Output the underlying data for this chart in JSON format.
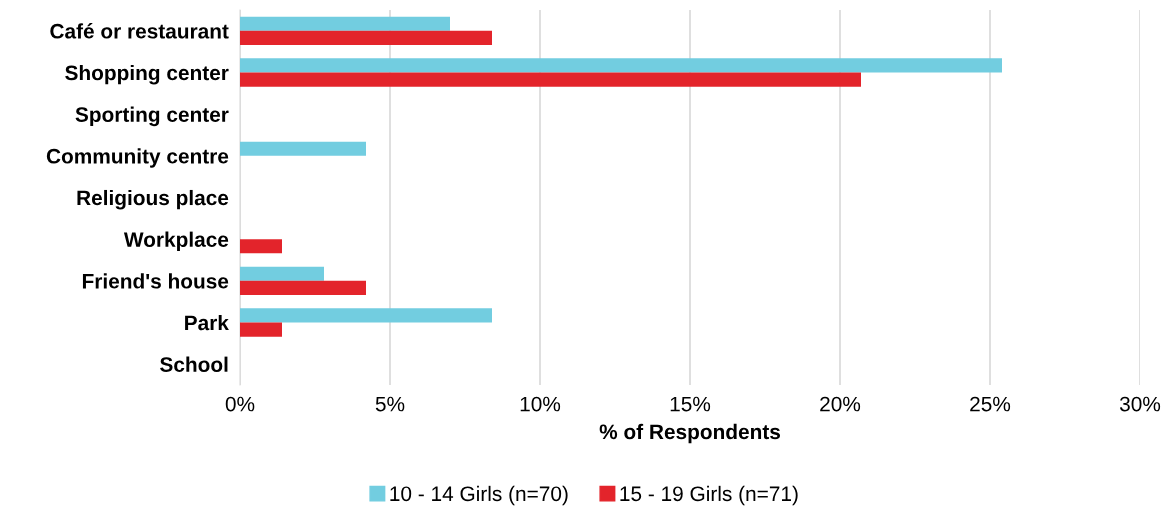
{
  "chart_data": {
    "type": "bar",
    "orientation": "horizontal",
    "xlabel": "% of Respondents",
    "categories": [
      "Café or restaurant",
      "Shopping center",
      "Sporting center",
      "Community centre",
      "Religious place",
      "Workplace",
      "Friend's house",
      "Park",
      "School"
    ],
    "series": [
      {
        "name": "10 - 14 Girls (n=70)",
        "color": "#72cde0",
        "values": [
          7.0,
          25.4,
          0,
          4.2,
          0,
          0,
          2.8,
          8.4,
          0
        ]
      },
      {
        "name": "15 - 19 Girls (n=71)",
        "color": "#e3242b",
        "values": [
          8.4,
          20.7,
          0,
          0,
          0,
          1.4,
          4.2,
          1.4,
          0
        ]
      }
    ],
    "xlim": [
      0,
      30
    ],
    "xticks": [
      {
        "value": 0,
        "label": "0%"
      },
      {
        "value": 5,
        "label": "5%"
      },
      {
        "value": 10,
        "label": "10%"
      },
      {
        "value": 15,
        "label": "15%"
      },
      {
        "value": 20,
        "label": "20%"
      },
      {
        "value": 25,
        "label": "25%"
      },
      {
        "value": 30,
        "label": "30%"
      }
    ],
    "grid": "x",
    "legend": "bottom"
  }
}
